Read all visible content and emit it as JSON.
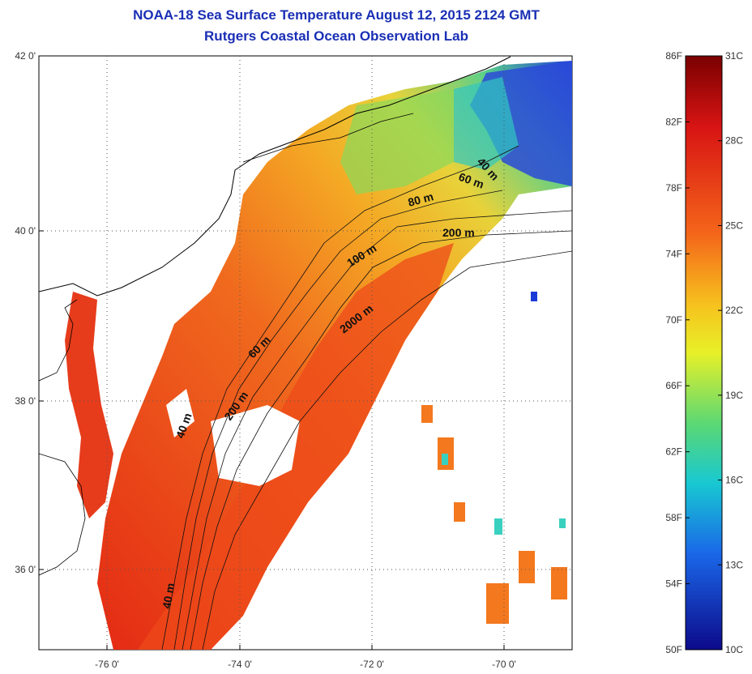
{
  "title": "NOAA-18 Sea Surface Temperature August 12, 2015 2124 GMT",
  "subtitle": "Rutgers Coastal Ocean Observation Lab",
  "colors": {
    "title": "#1a2fb5",
    "ocean_warm": "#f0521a",
    "ocean_mid": "#f4a020",
    "ocean_cool": "#6cd27a",
    "ocean_cold": "#1633d6",
    "land": "#ffffff"
  },
  "axes": {
    "lat_ticks": [
      "42 0'",
      "40 0'",
      "38 0'",
      "36 0'"
    ],
    "lon_ticks": [
      "-76 0'",
      "-74 0'",
      "-72 0'",
      "-70 0'"
    ]
  },
  "contour_labels": [
    "40 m",
    "60 m",
    "80 m",
    "200 m",
    "100 m",
    "2000 m",
    "60 m",
    "200 m",
    "40 m",
    "40 m"
  ],
  "colorbar": {
    "celsius": [
      "31C",
      "28C",
      "25C",
      "22C",
      "19C",
      "16C",
      "13C",
      "10C"
    ],
    "fahrenheit": [
      "86F",
      "82F",
      "78F",
      "74F",
      "70F",
      "66F",
      "62F",
      "58F",
      "54F",
      "50F"
    ],
    "range_c": [
      10,
      31
    ]
  }
}
